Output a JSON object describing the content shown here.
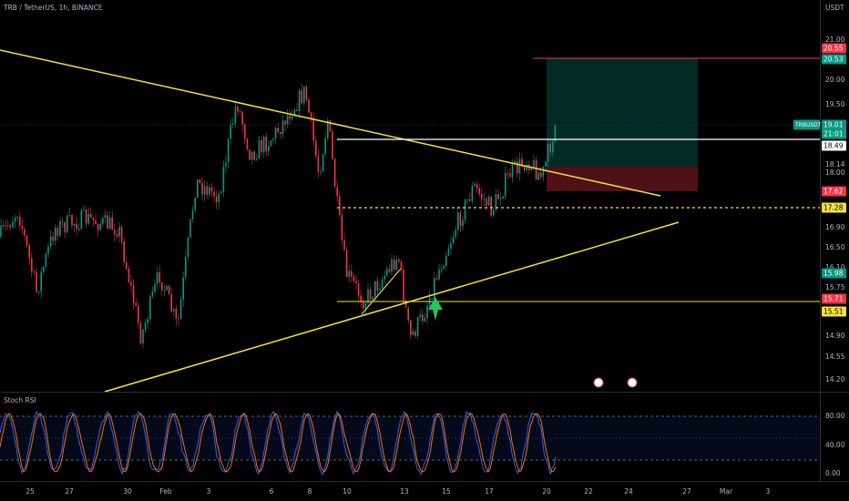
{
  "header": {
    "symbol": "TRB / TetherUS, 1h, BINANCE",
    "currency": "USDT"
  },
  "price_axis": [
    "21.00",
    "20.00",
    "19.50",
    "18.14",
    "18.00",
    "16.90",
    "16.50",
    "16.10",
    "15.75",
    "14.90",
    "14.55",
    "14.20"
  ],
  "price_tags": [
    "20.55",
    "20.53",
    "TRBUSDT",
    "19.01",
    "21:01",
    "18.49",
    "17.62",
    "17.28",
    "15.98",
    "15.71",
    "15.51"
  ],
  "indicator": {
    "name": "Stoch RSI",
    "axis": [
      "80.00",
      "40.00",
      "0.00"
    ]
  },
  "time_axis": [
    "25",
    "27",
    "30",
    "Feb",
    "3",
    "6",
    "8",
    "10",
    "13",
    "15",
    "17",
    "20",
    "22",
    "24",
    "27",
    "Mar",
    "3"
  ]
}
